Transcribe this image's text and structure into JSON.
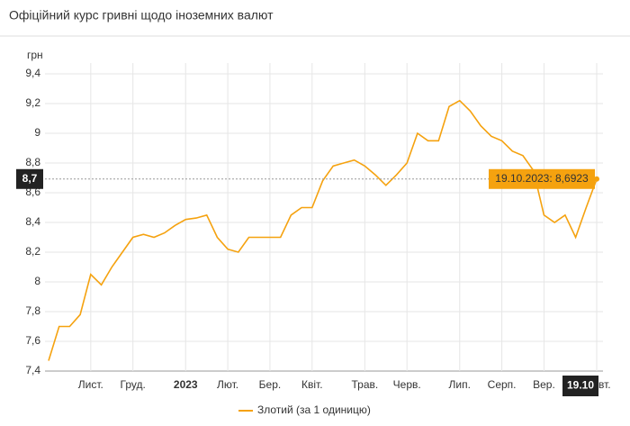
{
  "chart_data": {
    "type": "line",
    "title": "Офіційний курс гривні щодо іноземних валют",
    "y_label": "грн",
    "categories": [
      null,
      null,
      null,
      null,
      "Лист.",
      null,
      null,
      null,
      "Груд.",
      null,
      null,
      null,
      null,
      "2023",
      null,
      null,
      null,
      "Лют.",
      null,
      null,
      null,
      "Бер.",
      null,
      null,
      null,
      "Квіт.",
      null,
      null,
      null,
      null,
      "Трав.",
      null,
      null,
      null,
      "Черв.",
      null,
      null,
      null,
      null,
      "Лип.",
      null,
      null,
      null,
      "Серп.",
      null,
      null,
      null,
      "Вер.",
      null,
      null,
      null,
      null,
      "Жовт."
    ],
    "series": [
      {
        "name": "Злотий (за 1 одиницю)",
        "color": "#f5a20f",
        "values": [
          7.47,
          7.7,
          7.7,
          7.78,
          8.05,
          7.98,
          8.1,
          8.2,
          8.3,
          8.32,
          8.3,
          8.33,
          8.38,
          8.42,
          8.43,
          8.45,
          8.3,
          8.22,
          8.2,
          8.3,
          8.3,
          8.3,
          8.3,
          8.45,
          8.5,
          8.5,
          8.68,
          8.78,
          8.8,
          8.82,
          8.78,
          8.72,
          8.65,
          8.72,
          8.8,
          9.0,
          8.95,
          8.95,
          9.18,
          9.22,
          9.15,
          9.05,
          8.98,
          8.95,
          8.88,
          8.85,
          8.75,
          8.45,
          8.4,
          8.45,
          8.3,
          8.5,
          8.6923
        ]
      }
    ],
    "ylim": [
      7.4,
      9.4
    ],
    "yticks": [
      {
        "value": 7.4,
        "label": "7,4"
      },
      {
        "value": 7.6,
        "label": "7,6"
      },
      {
        "value": 7.8,
        "label": "7,8"
      },
      {
        "value": 8,
        "label": "8"
      },
      {
        "value": 8.2,
        "label": "8,2"
      },
      {
        "value": 8.4,
        "label": "8,4"
      },
      {
        "value": 8.6,
        "label": "8,6"
      },
      {
        "value": 8.8,
        "label": "8,8"
      },
      {
        "value": 9,
        "label": "9"
      },
      {
        "value": 9.2,
        "label": "9,2"
      },
      {
        "value": 9.4,
        "label": "9,4"
      }
    ],
    "grid": true,
    "annotation": "19.10.2023: 8,6923",
    "crosshair_y_label": "8,7",
    "crosshair_x_label": "19.10"
  }
}
